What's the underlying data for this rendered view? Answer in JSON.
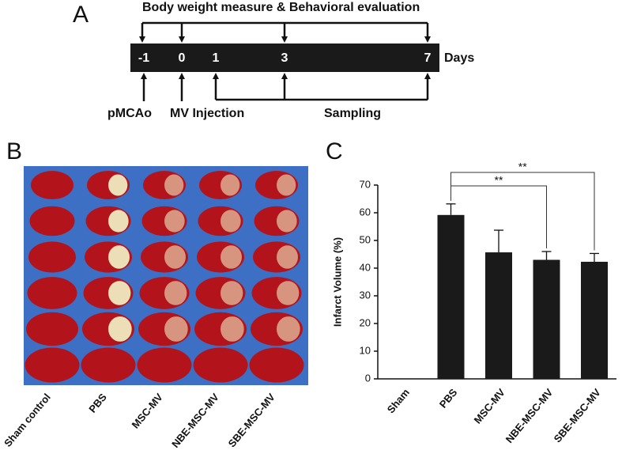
{
  "panel_labels": [
    "A",
    "B",
    "C"
  ],
  "timeline": {
    "title": "Body weight measure & Behavioral evaluation",
    "days": [
      "-1",
      "0",
      "1",
      "3",
      "7"
    ],
    "unit": "Days",
    "events": [
      "pMCAo",
      "MV Injection",
      "Sampling"
    ]
  },
  "image": {
    "columns": [
      "Sham control",
      "PBS",
      "MSC-MV",
      "NBE-MSC-MV",
      "SBE-MSC-MV"
    ]
  },
  "chart_data": {
    "type": "bar",
    "ylabel": "Infarct Volume (%)",
    "categories": [
      "Sham",
      "PBS",
      "MSC-MV",
      "NBE-MSC-MV",
      "SBE-MSC-MV"
    ],
    "values": [
      0,
      59.2,
      45.7,
      43,
      42.3
    ],
    "errors": [
      null,
      4,
      8,
      3,
      3
    ],
    "color": "#1a1a1a",
    "ylim": [
      0,
      70
    ],
    "yticks": [
      0,
      10,
      20,
      30,
      40,
      50,
      60,
      70
    ],
    "annotations": [
      {
        "text": "**",
        "between": [
          "PBS",
          "NBE-MSC-MV"
        ]
      },
      {
        "text": "**",
        "between": [
          "PBS",
          "SBE-MSC-MV"
        ]
      }
    ]
  }
}
